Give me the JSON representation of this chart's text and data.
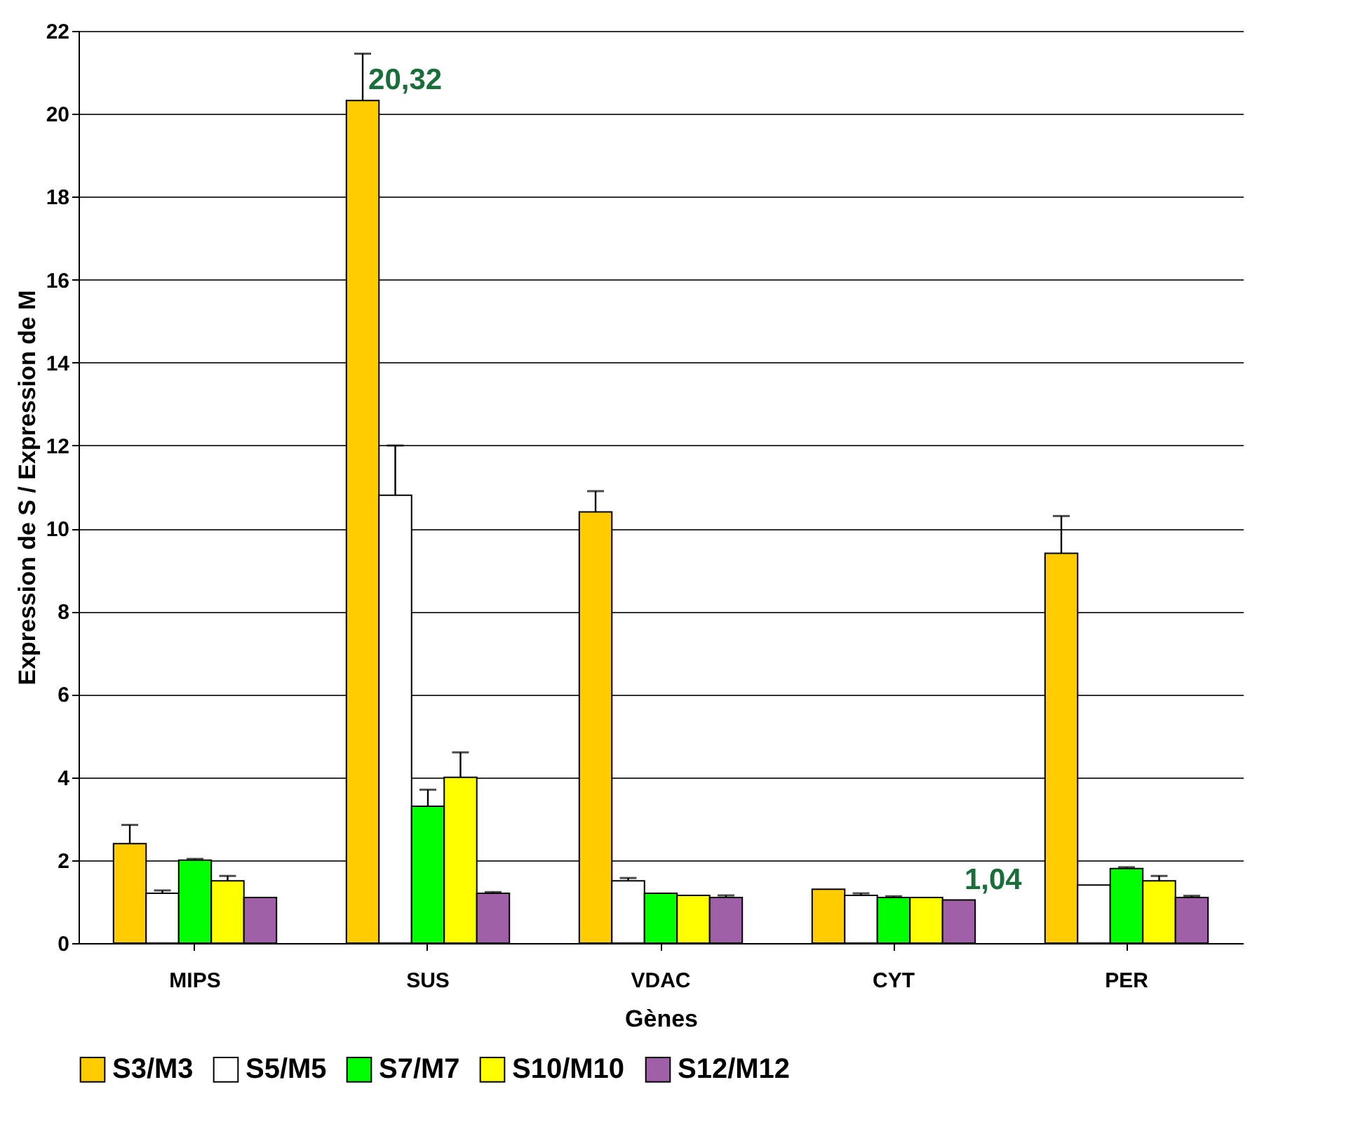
{
  "chart_data": {
    "type": "bar",
    "xlabel": "Gènes",
    "ylabel": "Expression de S / Expression de M",
    "categories": [
      "MIPS",
      "SUS",
      "VDAC",
      "CYT",
      "PER"
    ],
    "series": [
      {
        "name": "S3/M3",
        "color": "#ffcc00",
        "values": [
          2.4,
          20.32,
          10.4,
          1.3,
          9.4
        ],
        "errors": [
          [
            2.4,
            2.85
          ],
          [
            20.32,
            21.45
          ],
          [
            10.4,
            10.9
          ],
          null,
          [
            9.4,
            10.3
          ]
        ],
        "value_labels": [
          null,
          "20,32",
          null,
          null,
          null
        ]
      },
      {
        "name": "S5/M5",
        "color": "#ffffff",
        "values": [
          1.2,
          10.8,
          1.5,
          1.15,
          1.4
        ],
        "errors": [
          [
            1.2,
            1.27
          ],
          [
            10.8,
            12.0
          ],
          [
            1.5,
            1.57
          ],
          [
            1.15,
            1.2
          ],
          null
        ]
      },
      {
        "name": "S7/M7",
        "color": "#00ff00",
        "values": [
          2.0,
          3.3,
          1.2,
          1.1,
          1.8
        ],
        "errors": [
          [
            2.0,
            2.03
          ],
          [
            3.3,
            3.7
          ],
          null,
          [
            1.1,
            1.13
          ],
          [
            1.8,
            1.83
          ]
        ]
      },
      {
        "name": "S10/M10",
        "color": "#ffff00",
        "values": [
          1.5,
          4.0,
          1.15,
          1.1,
          1.5
        ],
        "errors": [
          [
            1.5,
            1.62
          ],
          [
            4.0,
            4.6
          ],
          null,
          null,
          [
            1.5,
            1.62
          ]
        ]
      },
      {
        "name": "S12/M12",
        "color": "#a060a8",
        "values": [
          1.1,
          1.2,
          1.1,
          1.04,
          1.1
        ],
        "errors": [
          null,
          [
            1.2,
            1.23
          ],
          [
            1.1,
            1.15
          ],
          null,
          [
            1.1,
            1.14
          ]
        ],
        "value_labels": [
          null,
          null,
          null,
          "1,04",
          null
        ]
      }
    ],
    "ylim": [
      0,
      22
    ],
    "yticks": [
      0,
      2,
      4,
      6,
      8,
      10,
      12,
      14,
      16,
      18,
      20,
      22
    ],
    "grid": "y",
    "legend": "bottom"
  }
}
